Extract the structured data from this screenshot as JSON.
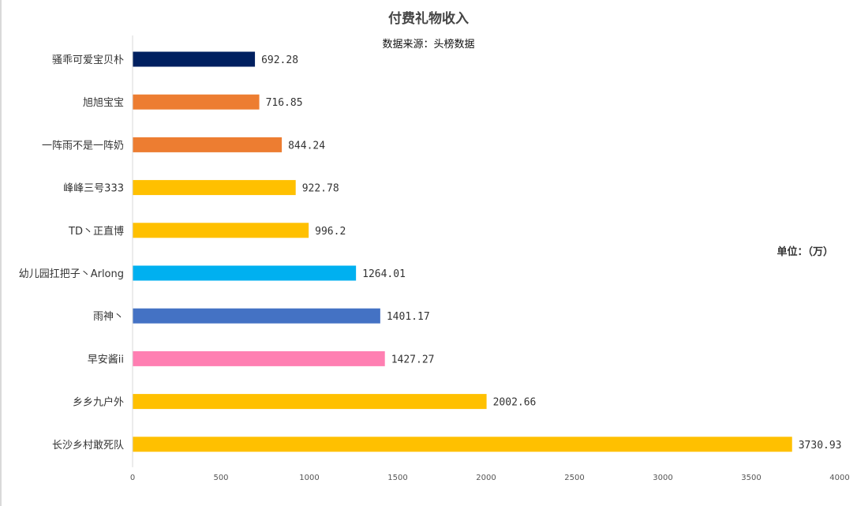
{
  "chart_data": {
    "type": "bar",
    "orientation": "horizontal",
    "title": "付费礼物收入",
    "subtitle": "数据来源：头榜数据",
    "unit": "单位：（万）",
    "xlabel": "",
    "ylabel": "",
    "xlim": [
      0,
      4000
    ],
    "ticks": [
      0,
      500,
      1000,
      1500,
      2000,
      2500,
      3000,
      3500,
      4000
    ],
    "grid": false,
    "legend": "none",
    "categories": [
      "骚乖可爱宝贝朴",
      "旭旭宝宝",
      "一阵雨不是一阵奶",
      "峰峰三号333",
      "TD丶正直博",
      "幼儿园扛把子丶Arlong",
      "雨神丶",
      "早安酱ii",
      "乡乡九户外",
      "长沙乡村敢死队"
    ],
    "values": [
      692.28,
      716.85,
      844.24,
      922.78,
      996.2,
      1264.01,
      1401.17,
      1427.27,
      2002.66,
      3730.93
    ],
    "value_labels": [
      "692.28",
      "716.85",
      "844.24",
      "922.78",
      "996.2",
      "1264.01",
      "1401.17",
      "1427.27",
      "2002.66",
      "3730.93"
    ],
    "colors": [
      "#002060",
      "#ED7D31",
      "#ED7D31",
      "#FFC000",
      "#FFC000",
      "#00B0F0",
      "#4472C4",
      "#FF7FB2",
      "#FFC000",
      "#FFC000"
    ]
  }
}
